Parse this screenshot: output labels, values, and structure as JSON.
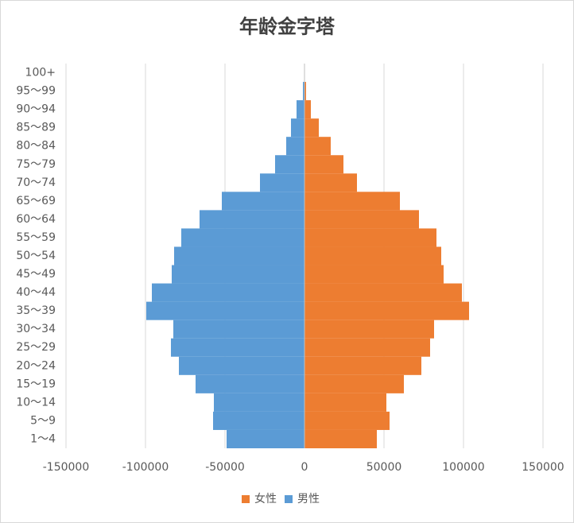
{
  "chart_data": {
    "type": "bar",
    "orientation": "horizontal",
    "stacked": true,
    "title": "年龄金字塔",
    "categories": [
      "1～4",
      "5～9",
      "10～14",
      "15～19",
      "20～24",
      "25～29",
      "30～34",
      "35～39",
      "40～44",
      "45～49",
      "50～54",
      "55～59",
      "60～64",
      "65～69",
      "70～74",
      "75～79",
      "80～84",
      "85～89",
      "90～94",
      "95～99",
      "100+"
    ],
    "series": [
      {
        "name": "女性",
        "color": "#ed7d31",
        "values": [
          45500,
          53500,
          51500,
          62500,
          73500,
          79000,
          81500,
          103500,
          99000,
          87500,
          86000,
          83000,
          72000,
          60000,
          33000,
          24500,
          16500,
          9000,
          4000,
          1000,
          200
        ]
      },
      {
        "name": "男性",
        "color": "#5b9bd5",
        "values": [
          -49000,
          -57500,
          -57000,
          -68500,
          -79000,
          -84000,
          -82500,
          -99500,
          -96000,
          -83500,
          -82000,
          -77500,
          -66000,
          -52000,
          -28000,
          -18500,
          -11500,
          -8500,
          -5000,
          -1000,
          -200
        ]
      }
    ],
    "xlim": [
      -150000,
      150000
    ],
    "xticks": [
      -150000,
      -100000,
      -50000,
      0,
      50000,
      100000,
      150000
    ],
    "grid": true,
    "legend": "bottom"
  }
}
